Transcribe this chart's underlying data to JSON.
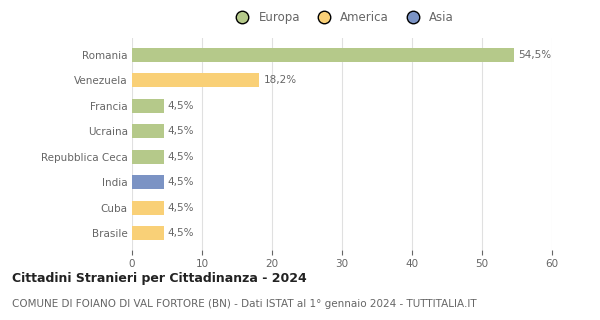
{
  "categories": [
    "Brasile",
    "Cuba",
    "India",
    "Repubblica Ceca",
    "Ucraina",
    "Francia",
    "Venezuela",
    "Romania"
  ],
  "values": [
    4.5,
    4.5,
    4.5,
    4.5,
    4.5,
    4.5,
    18.2,
    54.5
  ],
  "colors": [
    "#f9d077",
    "#f9d077",
    "#7b93c4",
    "#b5c98a",
    "#b5c98a",
    "#b5c98a",
    "#f9d077",
    "#b5c98a"
  ],
  "labels": [
    "4,5%",
    "4,5%",
    "4,5%",
    "4,5%",
    "4,5%",
    "4,5%",
    "18,2%",
    "54,5%"
  ],
  "legend": [
    {
      "label": "Europa",
      "color": "#b5c98a"
    },
    {
      "label": "America",
      "color": "#f9d077"
    },
    {
      "label": "Asia",
      "color": "#7b93c4"
    }
  ],
  "xlim": [
    0,
    60
  ],
  "xticks": [
    0,
    10,
    20,
    30,
    40,
    50,
    60
  ],
  "title": "Cittadini Stranieri per Cittadinanza - 2024",
  "subtitle": "COMUNE DI FOIANO DI VAL FORTORE (BN) - Dati ISTAT al 1° gennaio 2024 - TUTTITALIA.IT",
  "title_fontsize": 9,
  "subtitle_fontsize": 7.5,
  "background_color": "#ffffff",
  "grid_color": "#e0e0e0",
  "bar_height": 0.55,
  "label_fontsize": 7.5,
  "tick_fontsize": 7.5,
  "legend_fontsize": 8.5,
  "text_color": "#666666"
}
